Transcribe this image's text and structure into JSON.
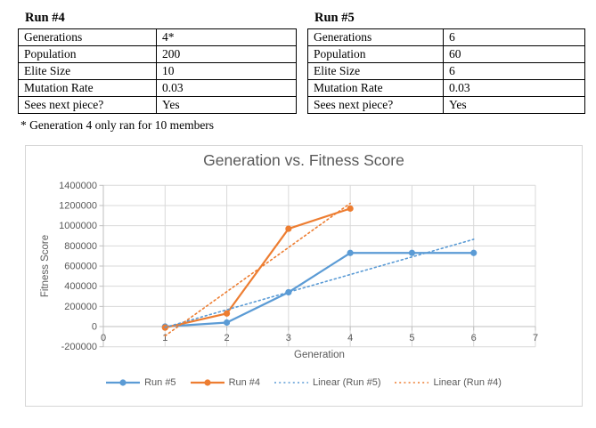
{
  "tables": [
    {
      "title": "Run #4",
      "rows": [
        [
          "Generations",
          "4*"
        ],
        [
          "Population",
          "200"
        ],
        [
          "Elite Size",
          "10"
        ],
        [
          "Mutation Rate",
          "0.03"
        ],
        [
          "Sees next piece?",
          "Yes"
        ]
      ]
    },
    {
      "title": "Run #5",
      "rows": [
        [
          "Generations",
          "6"
        ],
        [
          "Population",
          "60"
        ],
        [
          "Elite Size",
          "6"
        ],
        [
          "Mutation Rate",
          "0.03"
        ],
        [
          "Sees next piece?",
          "Yes"
        ]
      ]
    }
  ],
  "footnote": "* Generation 4 only ran for 10 members",
  "chart_data": {
    "type": "line",
    "title": "Generation vs. Fitness Score",
    "xlabel": "Generation",
    "ylabel": "Fitness Score",
    "xlim": [
      0,
      7
    ],
    "ylim": [
      -200000,
      1400000
    ],
    "x_ticks": [
      0,
      1,
      2,
      3,
      4,
      5,
      6,
      7
    ],
    "y_ticks": [
      -200000,
      0,
      200000,
      400000,
      600000,
      800000,
      1000000,
      1200000,
      1400000
    ],
    "grid": true,
    "legend_position": "bottom",
    "series": [
      {
        "name": "Run #5",
        "color": "#5B9BD5",
        "style": "solid",
        "marker": true,
        "points": [
          [
            1,
            0
          ],
          [
            2,
            40000
          ],
          [
            3,
            340000
          ],
          [
            4,
            730000
          ],
          [
            5,
            730000
          ],
          [
            6,
            730000
          ]
        ]
      },
      {
        "name": "Run #4",
        "color": "#ED7D31",
        "style": "solid",
        "marker": true,
        "points": [
          [
            1,
            -10000
          ],
          [
            2,
            130000
          ],
          [
            3,
            970000
          ],
          [
            4,
            1170000
          ]
        ]
      },
      {
        "name": "Linear (Run #5)",
        "color": "#5B9BD5",
        "style": "dotted",
        "marker": false,
        "points": [
          [
            1,
            -8000
          ],
          [
            6,
            865000
          ]
        ]
      },
      {
        "name": "Linear (Run #4)",
        "color": "#ED7D31",
        "style": "dotted",
        "marker": false,
        "points": [
          [
            1,
            -92000
          ],
          [
            4,
            1222000
          ]
        ]
      }
    ],
    "colors": {
      "gridline": "#D9D9D9",
      "axis": "#BFBFBF",
      "text": "#595959"
    }
  }
}
